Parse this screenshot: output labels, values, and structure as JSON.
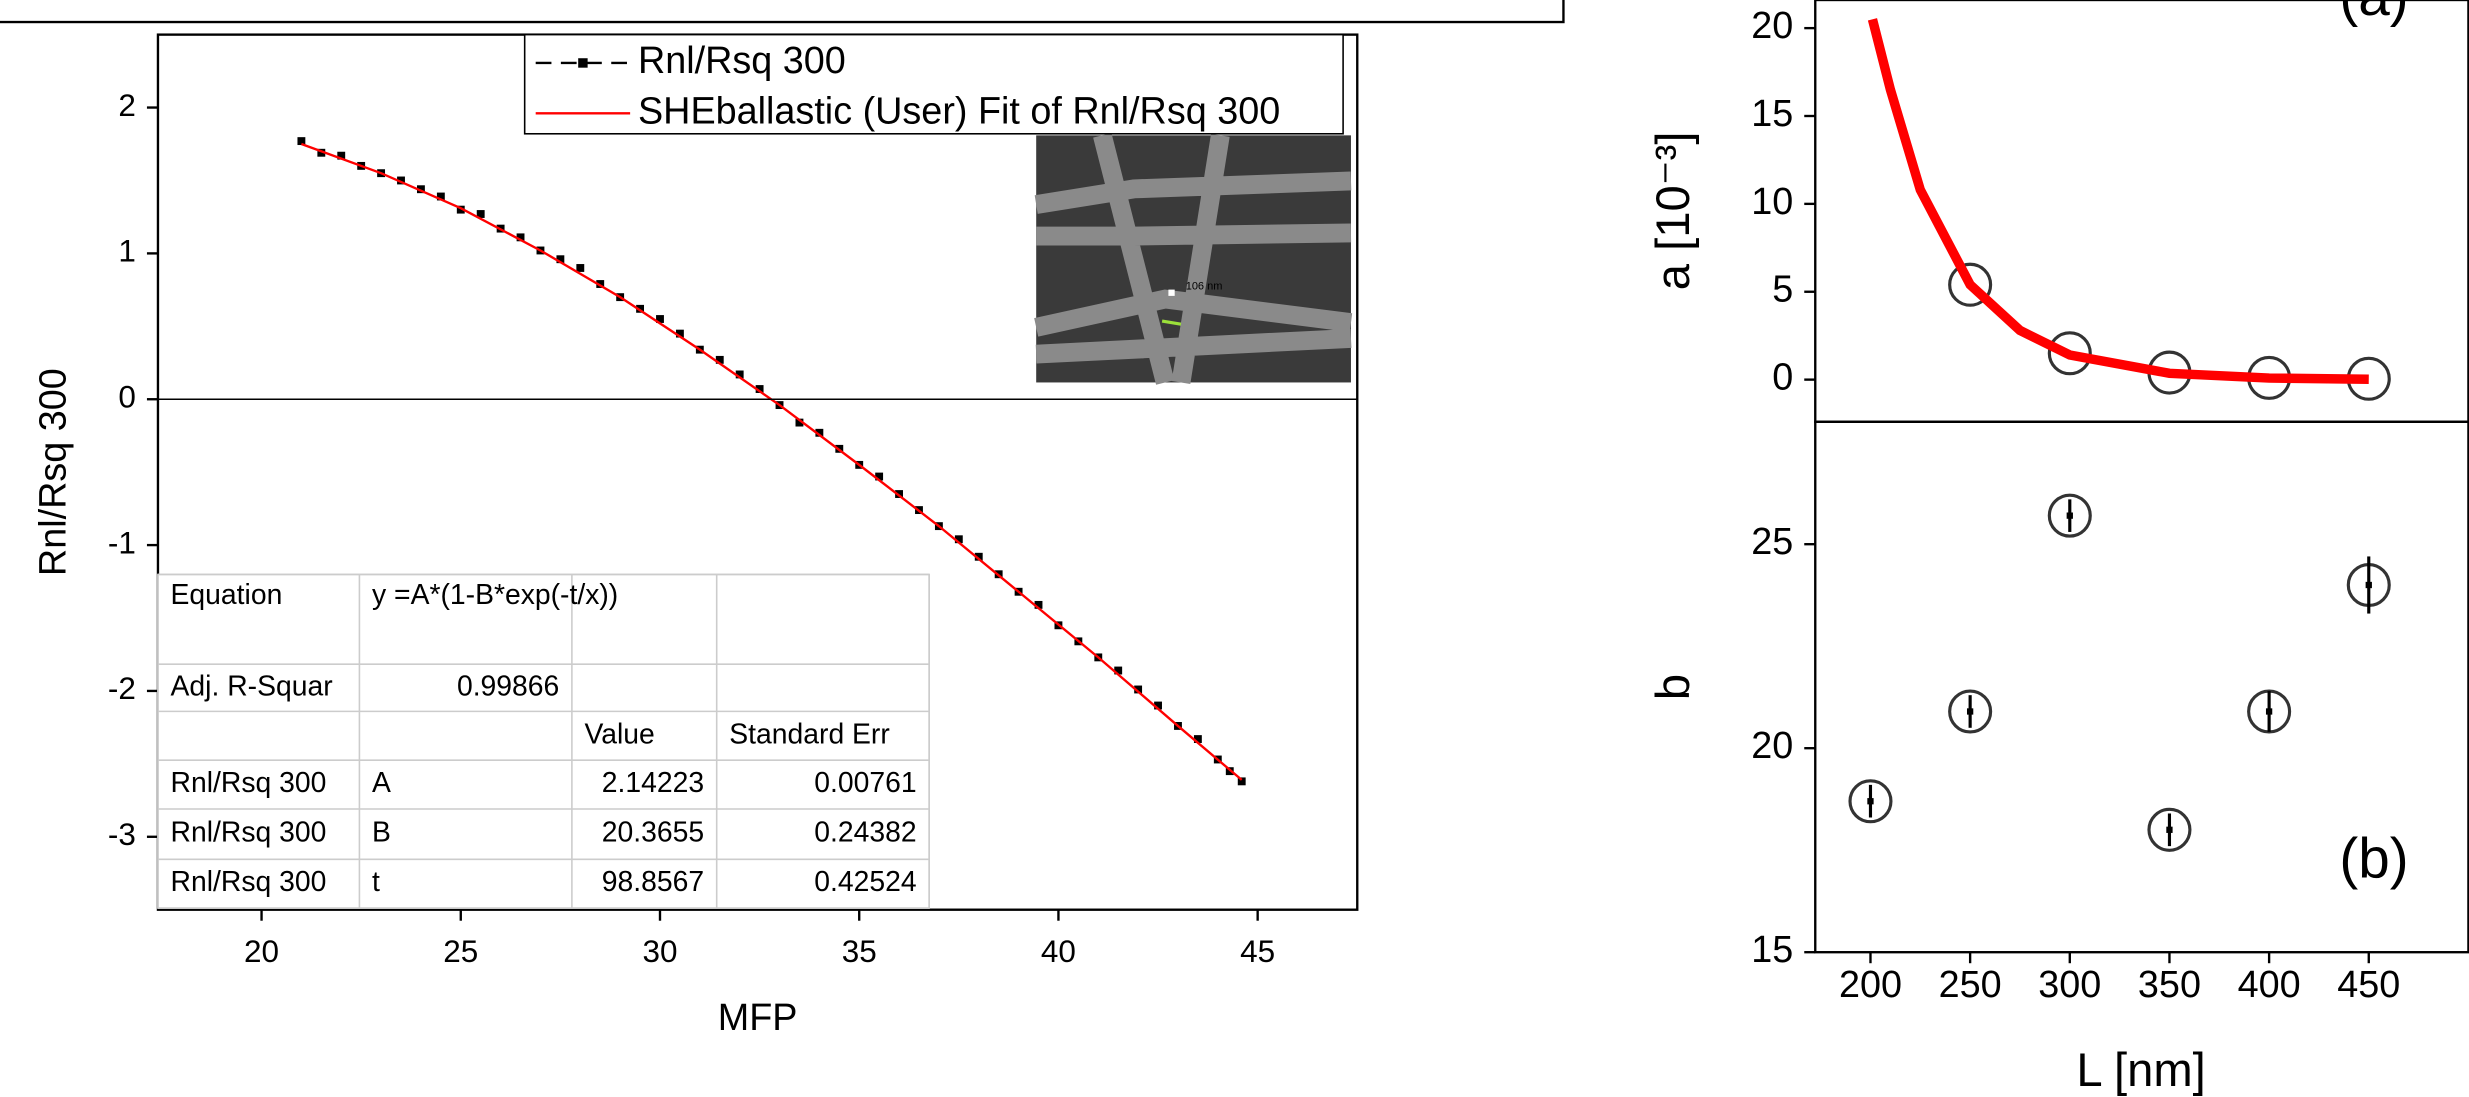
{
  "chart_data": [
    {
      "type": "scatter",
      "x_label": "MFP",
      "y_label": "Rnl/Rsq 300",
      "xlim": [
        17.4,
        47.5
      ],
      "ylim": [
        -3.5,
        2.5
      ],
      "xticks": [
        20,
        25,
        30,
        35,
        40,
        45
      ],
      "yticks": [
        -3,
        -2,
        -1,
        0,
        1,
        2
      ],
      "zero_line": true,
      "series": [
        {
          "name": "Rnl/Rsq 300",
          "color": "#000000",
          "mode": "markers",
          "x": [
            21,
            21.5,
            22,
            22.5,
            23,
            23.5,
            24,
            24.5,
            25,
            25.5,
            26,
            26.5,
            27,
            27.5,
            28,
            28.5,
            29,
            29.5,
            30,
            30.5,
            31,
            31.5,
            32,
            32.5,
            33,
            33.5,
            34,
            34.5,
            35,
            35.5,
            36,
            36.5,
            37,
            37.5,
            38,
            38.5,
            39,
            39.5,
            40,
            40.5,
            41,
            41.5,
            42,
            42.5,
            43,
            43.5,
            44,
            44.3,
            44.6
          ],
          "values": [
            1.77,
            1.69,
            1.67,
            1.6,
            1.55,
            1.5,
            1.44,
            1.39,
            1.3,
            1.27,
            1.17,
            1.11,
            1.02,
            0.96,
            0.9,
            0.79,
            0.7,
            0.62,
            0.55,
            0.45,
            0.34,
            0.27,
            0.17,
            0.07,
            -0.04,
            -0.16,
            -0.23,
            -0.34,
            -0.45,
            -0.53,
            -0.65,
            -0.76,
            -0.87,
            -0.96,
            -1.08,
            -1.2,
            -1.32,
            -1.41,
            -1.55,
            -1.66,
            -1.77,
            -1.86,
            -1.99,
            -2.1,
            -2.24,
            -2.33,
            -2.47,
            -2.55,
            -2.62
          ]
        },
        {
          "name": "SHEballastic (User) Fit of Rnl/Rsq 300",
          "color": "#ff0000",
          "mode": "line",
          "x": [
            21,
            23,
            25,
            27,
            29,
            31,
            33,
            35,
            37,
            39,
            41,
            43,
            44.6
          ],
          "values": [
            1.75,
            1.55,
            1.31,
            1.02,
            0.7,
            0.34,
            -0.04,
            -0.45,
            -0.87,
            -1.32,
            -1.77,
            -2.24,
            -2.61
          ]
        }
      ],
      "inset": {
        "label": "106 nm"
      },
      "fit_table": {
        "rows": [
          [
            "Equation",
            "y =A*(1-B*exp(-t/x))",
            null,
            null
          ],
          [
            "Adj. R-Squar",
            "0.99866",
            null,
            null
          ],
          [
            null,
            null,
            "Value",
            "Standard Err"
          ],
          [
            "Rnl/Rsq 300",
            "A",
            "2.14223",
            "0.00761"
          ],
          [
            "Rnl/Rsq 300",
            "B",
            "20.3655",
            "0.24382"
          ],
          [
            "Rnl/Rsq 300",
            "t",
            "98.8567",
            "0.42524"
          ]
        ]
      }
    },
    {
      "type": "scatter",
      "y_label": "a [10⁻³]",
      "annotation": "(a)",
      "xlim": [
        172.3,
        500
      ],
      "ylim": [
        -2.4,
        21.6
      ],
      "yticks": [
        0,
        5,
        10,
        15,
        20
      ],
      "series": [
        {
          "color": "#333333",
          "mode": "circles",
          "x": [
            250,
            300,
            350,
            400,
            450
          ],
          "values": [
            5.4,
            1.5,
            0.4,
            0.1,
            0.05
          ]
        },
        {
          "color": "#ff0000",
          "mode": "line",
          "x": [
            201,
            210,
            225,
            250,
            275,
            300,
            350,
            400,
            450
          ],
          "values": [
            20.5,
            16.5,
            10.8,
            5.4,
            2.8,
            1.4,
            0.36,
            0.09,
            0.02
          ]
        }
      ]
    },
    {
      "type": "scatter",
      "x_label": "L [nm]",
      "y_label": "b",
      "annotation": "(b)",
      "xlim": [
        172.3,
        500
      ],
      "ylim": [
        15,
        28
      ],
      "xticks": [
        200,
        250,
        300,
        350,
        400,
        450
      ],
      "yticks": [
        15,
        20,
        25
      ],
      "series": [
        {
          "color": "#333333",
          "mode": "circles",
          "x": [
            200,
            250,
            300,
            350,
            400,
            450
          ],
          "values": [
            18.7,
            20.9,
            25.7,
            18.0,
            20.9,
            24.0
          ],
          "errors": [
            0.4,
            0.4,
            0.4,
            0.4,
            0.5,
            0.7
          ]
        }
      ]
    }
  ]
}
